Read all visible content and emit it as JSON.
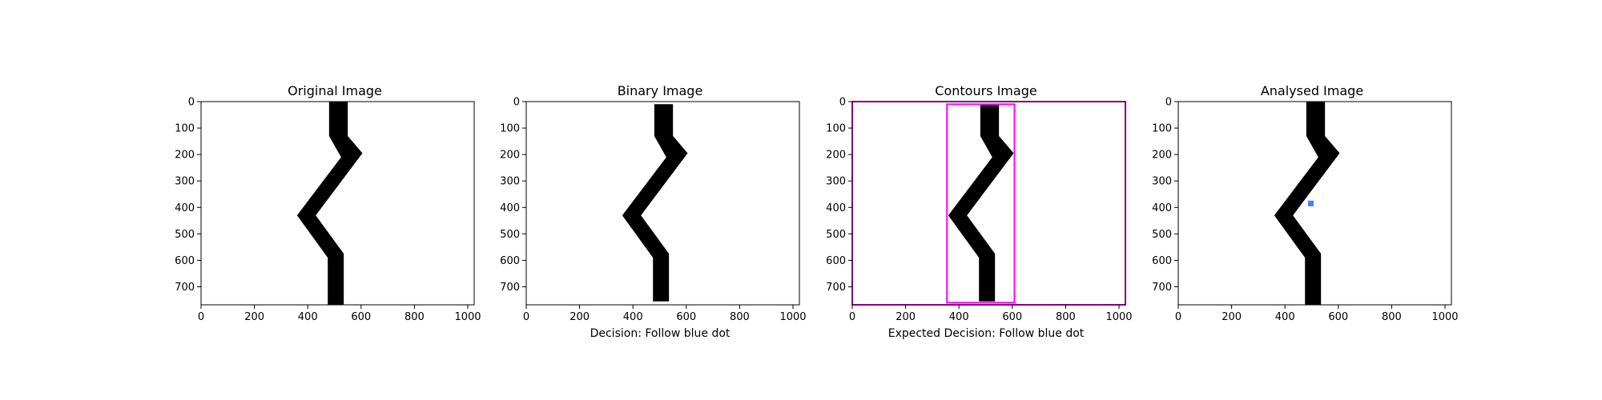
{
  "figure": {
    "panels": [
      {
        "title": "Original Image",
        "xlabel": ""
      },
      {
        "title": "Binary Image",
        "xlabel": "Decision: Follow blue dot"
      },
      {
        "title": "Contours Image",
        "xlabel": "Expected Decision: Follow blue dot"
      },
      {
        "title": "Analysed Image",
        "xlabel": ""
      }
    ]
  },
  "chart_data": [
    {
      "type": "image",
      "title": "Original Image",
      "xlim": [
        0,
        1024
      ],
      "ylim": [
        768,
        0
      ],
      "xticks": [
        0,
        200,
        400,
        600,
        800,
        1000
      ],
      "yticks": [
        0,
        100,
        200,
        300,
        400,
        500,
        600,
        700
      ],
      "line_polygon": [
        [
          480,
          0
        ],
        [
          550,
          0
        ],
        [
          550,
          130
        ],
        [
          605,
          195
        ],
        [
          430,
          430
        ],
        [
          535,
          575
        ],
        [
          535,
          768
        ],
        [
          475,
          768
        ],
        [
          475,
          590
        ],
        [
          360,
          430
        ],
        [
          525,
          210
        ],
        [
          480,
          130
        ]
      ],
      "line_color": "#000000"
    },
    {
      "type": "image",
      "title": "Binary Image",
      "xlabel": "Decision: Follow blue dot",
      "xlim": [
        0,
        1024
      ],
      "ylim": [
        768,
        0
      ],
      "xticks": [
        0,
        200,
        400,
        600,
        800,
        1000
      ],
      "yticks": [
        0,
        100,
        200,
        300,
        400,
        500,
        600,
        700
      ],
      "line_polygon": [
        [
          480,
          10
        ],
        [
          550,
          10
        ],
        [
          550,
          130
        ],
        [
          605,
          195
        ],
        [
          430,
          430
        ],
        [
          535,
          575
        ],
        [
          535,
          755
        ],
        [
          475,
          755
        ],
        [
          475,
          590
        ],
        [
          360,
          430
        ],
        [
          525,
          210
        ],
        [
          480,
          130
        ]
      ],
      "line_color": "#000000"
    },
    {
      "type": "image",
      "title": "Contours Image",
      "xlabel": "Expected Decision: Follow blue dot",
      "xlim": [
        0,
        1024
      ],
      "ylim": [
        768,
        0
      ],
      "xticks": [
        0,
        200,
        400,
        600,
        800,
        1000
      ],
      "yticks": [
        0,
        100,
        200,
        300,
        400,
        500,
        600,
        700
      ],
      "line_polygon": [
        [
          480,
          10
        ],
        [
          550,
          10
        ],
        [
          550,
          130
        ],
        [
          605,
          195
        ],
        [
          430,
          430
        ],
        [
          535,
          575
        ],
        [
          535,
          755
        ],
        [
          475,
          755
        ],
        [
          475,
          590
        ],
        [
          360,
          430
        ],
        [
          525,
          210
        ],
        [
          480,
          130
        ]
      ],
      "line_color": "#000000",
      "contour_boxes": [
        {
          "x0": 355,
          "y0": 10,
          "x1": 608,
          "y1": 760
        },
        {
          "x0": 0,
          "y0": 0,
          "x1": 1024,
          "y1": 768
        }
      ],
      "contour_color": "#ff00ff"
    },
    {
      "type": "image",
      "title": "Analysed Image",
      "xlim": [
        0,
        1024
      ],
      "ylim": [
        768,
        0
      ],
      "xticks": [
        0,
        200,
        400,
        600,
        800,
        1000
      ],
      "yticks": [
        0,
        100,
        200,
        300,
        400,
        500,
        600,
        700
      ],
      "line_polygon": [
        [
          480,
          0
        ],
        [
          550,
          0
        ],
        [
          550,
          130
        ],
        [
          605,
          195
        ],
        [
          430,
          430
        ],
        [
          535,
          575
        ],
        [
          535,
          768
        ],
        [
          475,
          768
        ],
        [
          475,
          590
        ],
        [
          360,
          430
        ],
        [
          525,
          210
        ],
        [
          480,
          130
        ]
      ],
      "line_color": "#000000",
      "dot": {
        "x": 497,
        "y": 385,
        "color": "#4a7dff"
      }
    }
  ]
}
